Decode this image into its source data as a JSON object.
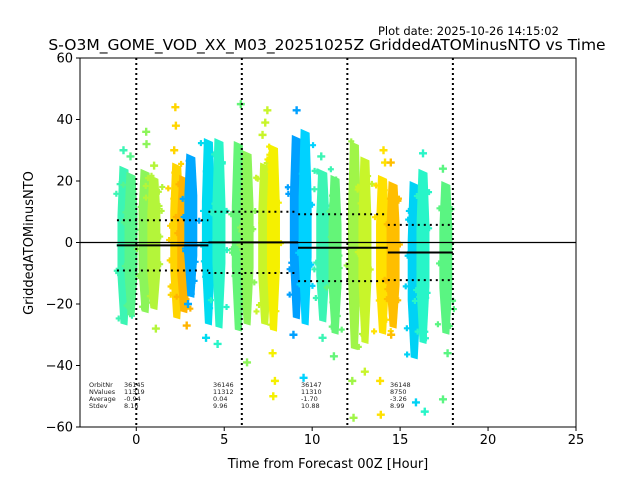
{
  "chart_data": {
    "type": "scatter",
    "title": "S-O3M_GOME_VOD_XX_M03_20251025Z GriddedATOMinusNTO vs Time",
    "plot_date": "Plot date: 2025-10-26 14:15:02",
    "xlabel": "Time from Forecast 00Z [Hour]",
    "ylabel": "GriddedATOMinusNTO",
    "xlim": [
      -3.2,
      25
    ],
    "ylim": [
      -60,
      60
    ],
    "xticks": [
      0,
      5,
      10,
      15,
      20,
      25
    ],
    "xtick_labels": [
      "0",
      "5",
      "10",
      "15",
      "20",
      "25"
    ],
    "yticks": [
      -60,
      -40,
      -20,
      0,
      20,
      40,
      60
    ],
    "ytick_labels": [
      "−60",
      "−40",
      "−20",
      "0",
      "20",
      "40",
      "60"
    ],
    "zero_line": 0,
    "grid": false,
    "orbit_boundaries": [
      0,
      6,
      12,
      18
    ],
    "marker": "+",
    "clusters": [
      {
        "x": -0.7,
        "ymin": -27,
        "ymax": 25,
        "outliers": [
          30
        ],
        "color": "#3cf5b4"
      },
      {
        "x": -0.3,
        "ymin": -24,
        "ymax": 23,
        "outliers": [
          28
        ],
        "color": "#58f58c"
      },
      {
        "x": 0.5,
        "ymin": -23,
        "ymax": 24,
        "outliers": [
          36,
          32
        ],
        "color": "#8cf55a"
      },
      {
        "x": 1.0,
        "ymin": -22,
        "ymax": 22,
        "outliers": [
          25,
          -28
        ],
        "color": "#b4f53a"
      },
      {
        "x": 2.3,
        "ymin": -25,
        "ymax": 26,
        "outliers": [
          44,
          38,
          30
        ],
        "color": "#ffd500"
      },
      {
        "x": 2.7,
        "ymin": -23,
        "ymax": 22,
        "outliers": [
          -27
        ],
        "color": "#ffb400"
      },
      {
        "x": 3.1,
        "ymin": -18,
        "ymax": 29,
        "outliers": [
          -20
        ],
        "color": "#00a8ff"
      },
      {
        "x": 4.1,
        "ymin": -27,
        "ymax": 34,
        "outliers": [
          -31
        ],
        "color": "#00dcf0"
      },
      {
        "x": 4.7,
        "ymin": -28,
        "ymax": 34,
        "outliers": [
          -33
        ],
        "color": "#28f5c8"
      },
      {
        "x": 5.8,
        "ymin": -29,
        "ymax": 33,
        "outliers": [
          45
        ],
        "color": "#64f578"
      },
      {
        "x": 6.3,
        "ymin": -27,
        "ymax": 30,
        "outliers": [
          -39
        ],
        "color": "#8cf55a"
      },
      {
        "x": 7.3,
        "ymin": -27,
        "ymax": 26,
        "outliers": [
          43,
          39,
          35
        ],
        "color": "#c8f52a"
      },
      {
        "x": 7.8,
        "ymin": -29,
        "ymax": 32,
        "outliers": [
          -36,
          -45,
          -50
        ],
        "color": "#f5f000"
      },
      {
        "x": 9.1,
        "ymin": -25,
        "ymax": 35,
        "outliers": [
          43,
          -30
        ],
        "color": "#00a0ff"
      },
      {
        "x": 9.6,
        "ymin": -27,
        "ymax": 37,
        "outliers": [
          -44
        ],
        "color": "#00d2ff"
      },
      {
        "x": 10.6,
        "ymin": -26,
        "ymax": 24,
        "outliers": [
          28,
          -31
        ],
        "color": "#3cf5b4"
      },
      {
        "x": 11.3,
        "ymin": -30,
        "ymax": 22,
        "outliers": [
          -37
        ],
        "color": "#64f578"
      },
      {
        "x": 12.4,
        "ymin": -35,
        "ymax": 33,
        "outliers": [
          -45,
          -57
        ],
        "color": "#a0f548"
      },
      {
        "x": 13.0,
        "ymin": -33,
        "ymax": 28,
        "outliers": [
          -42
        ],
        "color": "#c8f52a"
      },
      {
        "x": 14.0,
        "ymin": -30,
        "ymax": 22,
        "outliers": [
          30,
          26,
          -45,
          -56
        ],
        "color": "#ffe100"
      },
      {
        "x": 14.6,
        "ymin": -28,
        "ymax": 20,
        "outliers": [
          26,
          -30
        ],
        "color": "#ffbe00"
      },
      {
        "x": 15.8,
        "ymin": -38,
        "ymax": 20,
        "outliers": [
          -52
        ],
        "color": "#00d2f5"
      },
      {
        "x": 16.3,
        "ymin": -33,
        "ymax": 24,
        "outliers": [
          29,
          -55
        ],
        "color": "#28f5c8"
      },
      {
        "x": 17.6,
        "ymin": -30,
        "ymax": 20,
        "outliers": [
          24,
          -36,
          -51
        ],
        "color": "#5af582"
      }
    ],
    "orbit_stats": [
      {
        "x_start": -1.1,
        "x_end": 4.1,
        "mean": -0.94,
        "upper": 7.22,
        "lower": -9.1,
        "orbit_nr": "36145",
        "n_values": "11319",
        "average": "-0.94",
        "stdev": "8.16"
      },
      {
        "x_start": 4.1,
        "x_end": 9.2,
        "mean": 0.04,
        "upper": 10.0,
        "lower": -9.92,
        "orbit_nr": "36146",
        "n_values": "11312",
        "average": "0.04",
        "stdev": "9.96"
      },
      {
        "x_start": 9.2,
        "x_end": 14.3,
        "mean": -1.7,
        "upper": 9.18,
        "lower": -12.58,
        "orbit_nr": "36147",
        "n_values": "11310",
        "average": "-1.70",
        "stdev": "10.88"
      },
      {
        "x_start": 14.3,
        "x_end": 18.0,
        "mean": -3.26,
        "upper": 5.73,
        "lower": -12.25,
        "orbit_nr": "36148",
        "n_values": "8750",
        "average": "-3.26",
        "stdev": "8.99"
      }
    ],
    "stats_labels": [
      "OrbitNr",
      "NValues",
      "Average",
      "Stdev"
    ]
  }
}
